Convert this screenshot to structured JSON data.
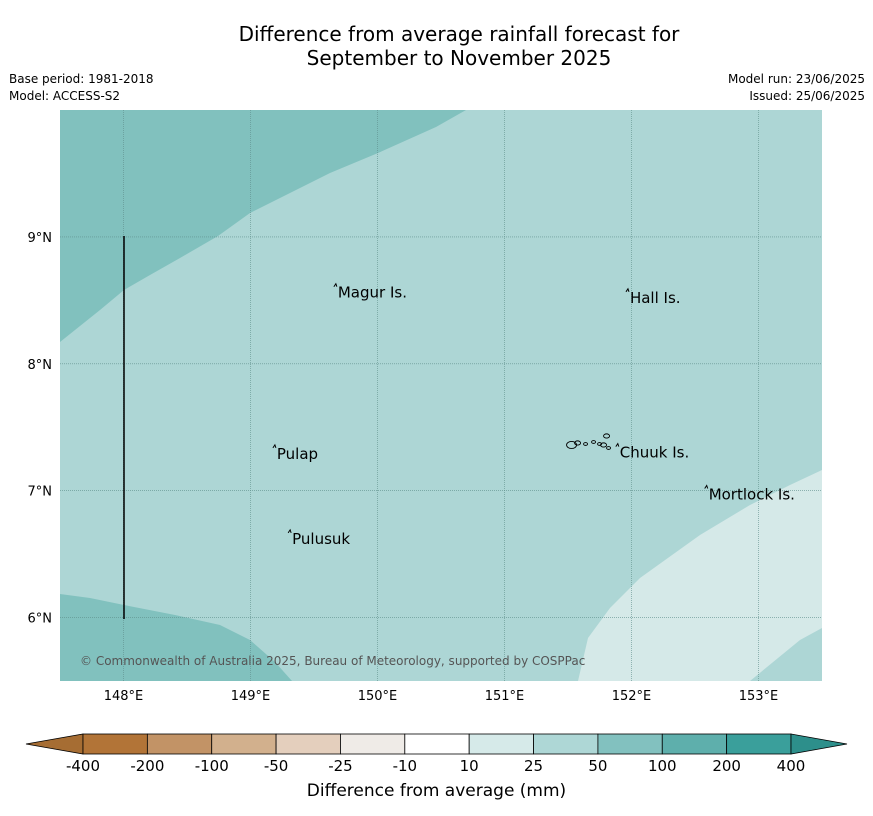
{
  "title": {
    "line1": "Difference from average rainfall forecast for",
    "line2": "September to November 2025"
  },
  "meta": {
    "base_period": "Base period: 1981-2018",
    "model": "Model: ACCESS-S2",
    "model_run": "Model run: 23/06/2025",
    "issued": "Issued: 25/06/2025"
  },
  "map": {
    "lon_range": [
      147.5,
      153.5
    ],
    "lat_range": [
      5.5,
      10.0
    ],
    "lon_ticks": [
      {
        "value": 148,
        "label": "148°E"
      },
      {
        "value": 149,
        "label": "149°E"
      },
      {
        "value": 150,
        "label": "150°E"
      },
      {
        "value": 151,
        "label": "151°E"
      },
      {
        "value": 152,
        "label": "152°E"
      },
      {
        "value": 153,
        "label": "153°E"
      }
    ],
    "lat_ticks": [
      {
        "value": 9,
        "label": "9°N"
      },
      {
        "value": 8,
        "label": "8°N"
      },
      {
        "value": 7,
        "label": "7°N"
      },
      {
        "value": 6,
        "label": "6°N"
      }
    ],
    "places": [
      {
        "name": "Magur Is.",
        "lon": 149.68,
        "lat": 8.56
      },
      {
        "name": "Hall Is.",
        "lon": 151.98,
        "lat": 8.52
      },
      {
        "name": "Pulap",
        "lon": 149.2,
        "lat": 7.29
      },
      {
        "name": "Chuuk Is.",
        "lon": 151.9,
        "lat": 7.3
      },
      {
        "name": "Mortlock Is.",
        "lon": 152.6,
        "lat": 6.97
      },
      {
        "name": "Pulusuk",
        "lon": 149.32,
        "lat": 6.62
      }
    ],
    "zones": [
      {
        "band": "50 to 100",
        "color": "#81c1be"
      },
      {
        "band": "25 to 50",
        "color": "#add6d5"
      },
      {
        "band": "10 to 25",
        "color": "#d5e9e8"
      }
    ],
    "copyright": "© Commonwealth of Australia 2025, Bureau of Meteorology, supported by COSPPac"
  },
  "colorbar": {
    "ticks": [
      "-400",
      "-200",
      "-100",
      "-50",
      "-25",
      "-10",
      "10",
      "25",
      "50",
      "100",
      "200",
      "400"
    ],
    "colors": [
      "#a66d33",
      "#b27437",
      "#c29366",
      "#d2b08d",
      "#e4cfbd",
      "#efebe7",
      "#ffffff",
      "#d6eae9",
      "#aed7d6",
      "#82c1bf",
      "#5eafac",
      "#3a9f9b",
      "#2d8f8b"
    ],
    "label": "Difference from average (mm)"
  }
}
